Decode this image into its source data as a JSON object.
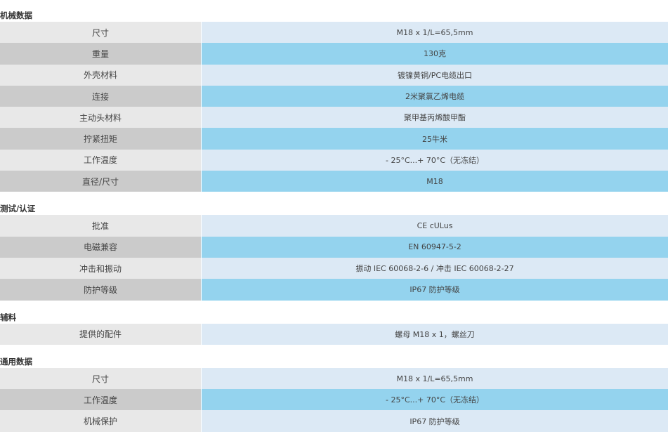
{
  "colors": {
    "label_light": "#e8e8e8",
    "label_dark": "#cbcbcb",
    "value_light": "#dce9f5",
    "value_dark": "#94d3ee"
  },
  "sections": [
    {
      "title": "机械数据",
      "rows": [
        {
          "label": "尺寸",
          "value": "M18 x 1/L=65,5mm"
        },
        {
          "label": "重量",
          "value": "130克"
        },
        {
          "label": "外壳材料",
          "value": "镀镍黄铜/PC电缆出口"
        },
        {
          "label": "连接",
          "value": "2米聚氯乙烯电缆"
        },
        {
          "label": "主动头材料",
          "value": "聚甲基丙烯酸甲酯"
        },
        {
          "label": "拧紧扭矩",
          "value": "25牛米"
        },
        {
          "label": "工作温度",
          "value": "- 25°C...+ 70°C（无冻结）"
        },
        {
          "label": "直径/尺寸",
          "value": "M18"
        }
      ]
    },
    {
      "title": "测试/认证",
      "rows": [
        {
          "label": "批准",
          "value": "CE cULus"
        },
        {
          "label": "电磁兼容",
          "value": "EN 60947-5-2"
        },
        {
          "label": "冲击和振动",
          "value": "振动 IEC 60068-2-6 / 冲击 IEC 60068-2-27"
        },
        {
          "label": "防护等级",
          "value": "IP67 防护等级"
        }
      ]
    },
    {
      "title": "辅料",
      "rows": [
        {
          "label": "提供的配件",
          "value": "螺母 M18 x 1，螺丝刀"
        }
      ]
    },
    {
      "title": "通用数据",
      "rows": [
        {
          "label": "尺寸",
          "value": "M18 x 1/L=65,5mm"
        },
        {
          "label": "工作温度",
          "value": "- 25°C...+ 70°C（无冻结）"
        },
        {
          "label": "机械保护",
          "value": "IP67 防护等级"
        }
      ]
    }
  ]
}
